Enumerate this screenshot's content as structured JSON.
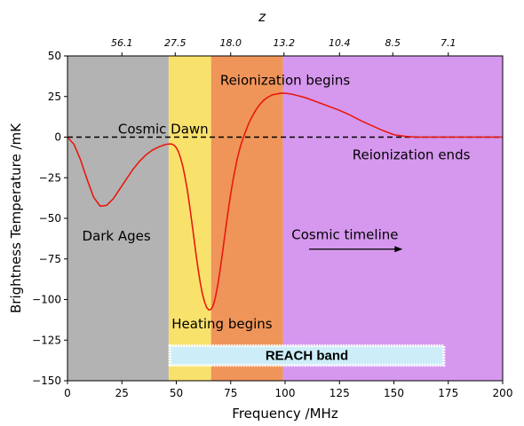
{
  "chart_data": {
    "type": "line",
    "xlabel": "Frequency /MHz",
    "ylabel": "Brightness Temperature /mK",
    "top_axis_label": "z",
    "xlim": [
      0,
      200
    ],
    "ylim": [
      -150,
      50
    ],
    "x_ticks": [
      0,
      25,
      50,
      75,
      100,
      125,
      150,
      175,
      200
    ],
    "x_tick_labels": [
      "0",
      "25",
      "50",
      "75",
      "100",
      "125",
      "150",
      "175",
      "200"
    ],
    "y_ticks": [
      -150,
      -125,
      -100,
      -75,
      -50,
      -25,
      0,
      25,
      50
    ],
    "y_tick_labels": [
      "−150",
      "−125",
      "−100",
      "−75",
      "−50",
      "−25",
      "0",
      "25",
      "50"
    ],
    "z_ticks": [
      {
        "label": "56.1",
        "freq": 25
      },
      {
        "label": "27.5",
        "freq": 49.5
      },
      {
        "label": "18.0",
        "freq": 75
      },
      {
        "label": "13.2",
        "freq": 99.5
      },
      {
        "label": "10.4",
        "freq": 125
      },
      {
        "label": "8.5",
        "freq": 149.5
      },
      {
        "label": "7.1",
        "freq": 175
      }
    ],
    "regions": [
      {
        "x0": 0,
        "x1": 46.5,
        "color": "#b3b3b3"
      },
      {
        "x0": 46.5,
        "x1": 66,
        "color": "#f9e26c"
      },
      {
        "x0": 66,
        "x1": 99,
        "color": "#f0955a"
      },
      {
        "x0": 99,
        "x1": 200,
        "color": "#d698ee"
      }
    ],
    "series": [
      {
        "color": "#e8190f",
        "x": [
          0,
          3,
          6,
          9,
          12,
          15,
          18,
          21,
          24,
          27,
          30,
          33,
          36,
          39,
          42,
          45,
          47,
          48,
          49,
          50,
          51,
          52,
          53,
          54,
          55,
          56,
          57,
          58,
          59,
          60,
          61,
          62,
          63,
          64,
          65,
          66,
          67,
          68,
          69,
          70,
          71,
          72,
          73,
          74,
          75,
          76,
          77,
          78,
          79,
          80,
          81,
          82,
          83,
          84,
          85,
          86,
          87,
          88,
          89,
          90,
          92,
          94,
          96,
          98,
          100,
          103,
          106,
          110,
          115,
          120,
          125,
          130,
          135,
          140,
          145,
          150,
          155,
          160,
          163,
          166,
          170,
          175,
          180,
          185,
          190,
          195,
          200
        ],
        "y": [
          0,
          -4.5,
          -14,
          -26,
          -37,
          -42.5,
          -42,
          -38,
          -32,
          -26,
          -20,
          -15,
          -11,
          -8,
          -6,
          -4.5,
          -4.2,
          -4.3,
          -5,
          -6.5,
          -9,
          -13,
          -18,
          -24.5,
          -32,
          -41,
          -51,
          -61,
          -71.5,
          -81,
          -89.5,
          -96.5,
          -101.5,
          -105,
          -106.5,
          -106,
          -103.5,
          -98.5,
          -91.5,
          -83,
          -73.5,
          -63.5,
          -53.5,
          -44,
          -35,
          -27,
          -20,
          -13.5,
          -8,
          -3.5,
          0.5,
          4,
          7.5,
          10.5,
          13,
          15.5,
          17.5,
          19.5,
          21,
          22.5,
          24.5,
          26,
          26.5,
          27,
          27,
          26.5,
          25.5,
          24,
          21.5,
          19,
          16.5,
          13.5,
          10,
          7,
          4,
          1.5,
          0.5,
          0,
          0,
          0,
          0,
          0,
          0,
          0,
          0,
          0,
          0
        ]
      }
    ],
    "reference_line": {
      "y": 0,
      "style": "dashed",
      "color": "#000000"
    },
    "annotations": [
      {
        "text": "Dark Ages",
        "x": 22.5,
        "y": -61
      },
      {
        "text": "Cosmic Dawn",
        "x": 44,
        "y": 5
      },
      {
        "text": "Heating begins",
        "x": 71,
        "y": -115
      },
      {
        "text": "Reionization begins",
        "x": 100,
        "y": 35
      },
      {
        "text": "Reionization ends",
        "x": 158,
        "y": -11
      },
      {
        "text": "Cosmic timeline",
        "x": 127.5,
        "y": -60
      }
    ],
    "arrow": {
      "x0": 111,
      "y0": -69,
      "x1": 154,
      "y1": -69
    },
    "reach_band": {
      "label": "REACH band",
      "x0": 47,
      "x1": 173,
      "y_center": -134.5,
      "height_mK": 12
    }
  }
}
